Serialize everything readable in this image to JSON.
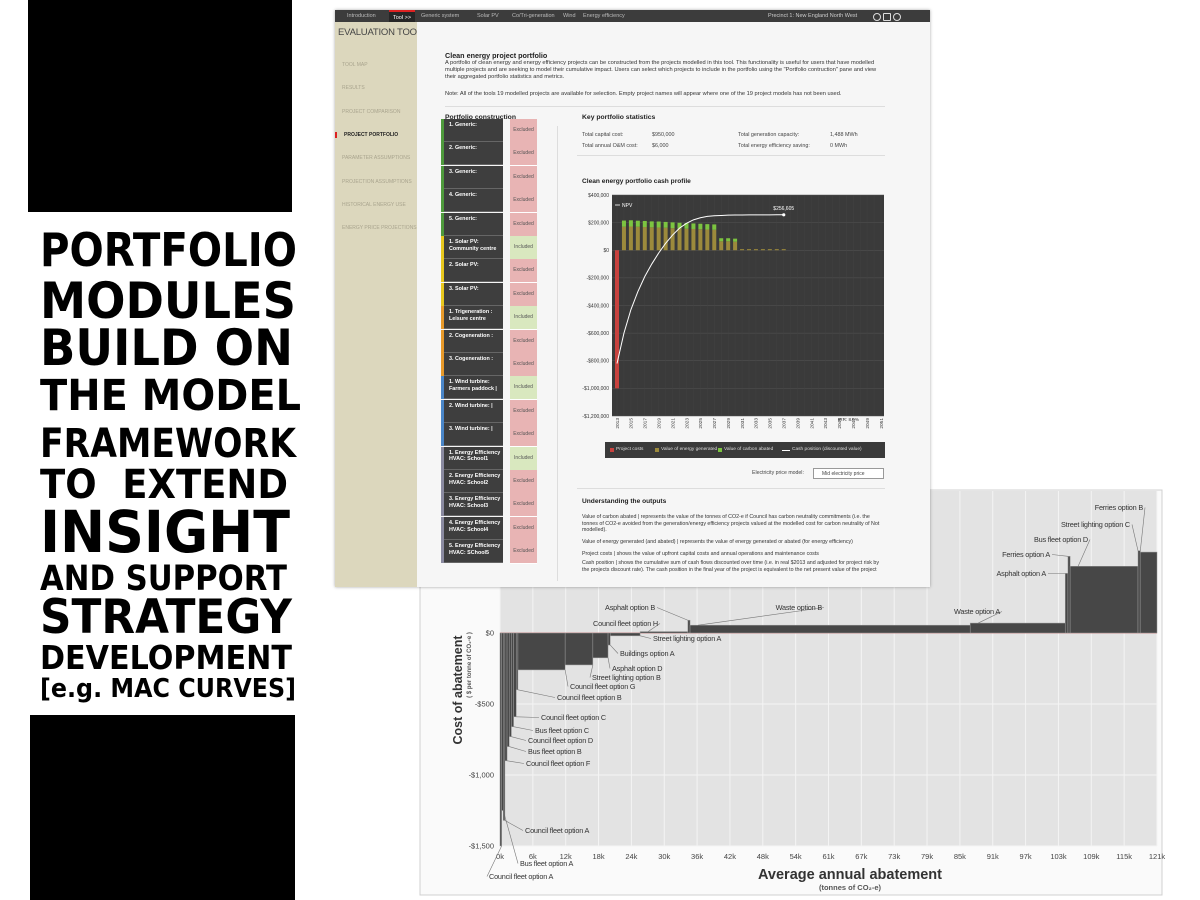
{
  "headline": [
    "PORTFOLIO",
    "MODULES",
    "BUILD ON",
    "THE MODEL",
    "FRAMEWORK",
    "TO  EXTEND",
    "INSIGHT",
    "AND SUPPORT",
    "STRATEGY",
    "DEVELOPMENT",
    "[e.g. MAC CURVES]"
  ],
  "tool": {
    "nav": [
      "Introduction",
      "Tool >>",
      "Generic system",
      "Solar PV",
      "Co/Tri-generation",
      "Wind",
      "Energy efficiency"
    ],
    "nav_active": 1,
    "precinct": "Precinct 1: New England North West",
    "sidebar_title": "EVALUATION TOOL",
    "sidebar": [
      "TOOL MAP",
      "RESULTS",
      "PROJECT COMPARISON",
      "PROJECT PORTFOLIO",
      "PARAMETER ASSUMPTIONS",
      "PROJECTION ASSUMPTIONS",
      "HISTORICAL ENERGY USE",
      "ENERGY PRICE PROJECTIONS"
    ],
    "sidebar_active": 3,
    "heading": "Clean energy project portfolio",
    "intro": "A portfolio of clean energy and energy efficiency projects can be constructed from the projects modelled in this tool. This functionality is useful for users that have modelled multiple projects and are seeking to model their cumulative impact. Users can select which projects to include in the portfolio using the \"Portfolio contruction\" pane and view their aggregated portfolio statistics and metrics.",
    "note": "Note: All of the tools 19 modelled projects are available for selection. Empty project names will appear where one of the 19 project models has not been used.",
    "construction_title": "Portfolio construction",
    "projects": [
      {
        "name": "1. Generic:",
        "status": "Excluded",
        "color": "#4e9a3c"
      },
      {
        "name": "2. Generic:",
        "status": "Excluded",
        "color": "#4e9a3c"
      },
      {
        "name": "3. Generic:",
        "status": "Excluded",
        "color": "#4e9a3c"
      },
      {
        "name": "4. Generic:",
        "status": "Excluded",
        "color": "#4e9a3c"
      },
      {
        "name": "5. Generic:",
        "status": "Excluded",
        "color": "#4e9a3c"
      },
      {
        "name": "1. Solar PV: Community centre",
        "status": "Included",
        "color": "#e8c81e"
      },
      {
        "name": "2. Solar PV:",
        "status": "Excluded",
        "color": "#e8c81e"
      },
      {
        "name": "3. Solar PV:",
        "status": "Excluded",
        "color": "#e8c81e"
      },
      {
        "name": "1. Trigeneration : Leisure centre",
        "status": "Included",
        "color": "#e89a2a"
      },
      {
        "name": "2. Cogeneration :",
        "status": "Excluded",
        "color": "#e89a2a"
      },
      {
        "name": "3. Cogeneration :",
        "status": "Excluded",
        "color": "#e89a2a"
      },
      {
        "name": "1. Wind turbine: Farmers paddock |",
        "status": "Included",
        "color": "#4a86c8"
      },
      {
        "name": "2. Wind turbine: |",
        "status": "Excluded",
        "color": "#4a86c8"
      },
      {
        "name": "3. Wind turbine: |",
        "status": "Excluded",
        "color": "#4a86c8"
      },
      {
        "name": "1. Energy Efficiency HVAC: School1",
        "status": "Included",
        "color": "#8a8aa0"
      },
      {
        "name": "2. Energy Efficiency HVAC: School2",
        "status": "Excluded",
        "color": "#8a8aa0"
      },
      {
        "name": "3. Energy Efficiency HVAC: School3",
        "status": "Excluded",
        "color": "#8a8aa0"
      },
      {
        "name": "4. Energy Efficiency HVAC: School4",
        "status": "Excluded",
        "color": "#8a8aa0"
      },
      {
        "name": "5. Energy Efficiency HVAC: SChool5",
        "status": "Excluded",
        "color": "#8a8aa0"
      }
    ],
    "stats_title": "Key portfolio statistics",
    "stats": [
      {
        "label": "Total capital cost:",
        "value": "$950,000"
      },
      {
        "label": "Total annual O&M cost:",
        "value": "$6,000"
      },
      {
        "label": "Total generation capacity:",
        "value": "1,488 MWh"
      },
      {
        "label": "Total energy efficiency saving:",
        "value": "0 MWh"
      }
    ],
    "cash_chart": {
      "type": "bar",
      "title": "Clean energy portfolio cash profile",
      "categories": [
        2013,
        null,
        2015,
        null,
        2017,
        null,
        2019,
        null,
        2021,
        null,
        2023,
        null,
        2025,
        null,
        2027,
        null,
        2029,
        null,
        2031,
        null,
        2033,
        null,
        2035,
        null,
        2037,
        null,
        2039,
        null,
        2041,
        null,
        2043,
        null,
        2045,
        null,
        2047,
        null,
        2049,
        null,
        2051
      ],
      "series": [
        {
          "name": "Project costs",
          "color": "#c8423e",
          "values": [
            -1000000,
            null,
            null,
            null,
            null,
            null,
            null,
            null,
            null,
            null,
            null,
            null,
            null,
            null,
            null,
            null,
            null,
            null,
            null,
            null,
            null,
            null,
            null,
            null,
            null,
            null,
            null,
            null,
            null,
            null,
            null,
            null,
            null,
            null,
            null,
            null,
            null,
            null,
            null
          ]
        },
        {
          "name": "Value of energy generated",
          "color": "#9c8a3c",
          "values": [
            null,
            170000,
            172000,
            170000,
            168000,
            166000,
            165000,
            163000,
            160000,
            158000,
            156000,
            154000,
            152000,
            150000,
            148000,
            65000,
            65000,
            62000,
            8000,
            8000,
            8000,
            8000,
            8000,
            8000,
            8000,
            null,
            null,
            null,
            null,
            null,
            null,
            null,
            null,
            null,
            null,
            null,
            null,
            null,
            null
          ]
        },
        {
          "name": "Value of carbon abated",
          "color": "#7cc440",
          "values": [
            null,
            45000,
            45000,
            44000,
            44000,
            43000,
            43000,
            42000,
            42000,
            41000,
            41000,
            40000,
            40000,
            39000,
            39000,
            22000,
            22000,
            22000,
            null,
            null,
            null,
            null,
            null,
            null,
            null,
            null,
            null,
            null,
            null,
            null,
            null,
            null,
            null,
            null,
            null,
            null,
            null,
            null,
            null
          ]
        },
        {
          "name": "Cash position (discounted value)",
          "color": "#ffffff",
          "type": "line",
          "values": [
            -820000,
            -600000,
            -430000,
            -300000,
            -190000,
            -100000,
            -20000,
            50000,
            110000,
            160000,
            195000,
            220000,
            235000,
            245000,
            250000,
            252000,
            254000,
            255000,
            255500,
            256000,
            256200,
            256400,
            256500,
            256600,
            256605,
            null,
            null,
            null,
            null,
            null,
            null,
            null,
            null,
            null,
            null,
            null,
            null,
            null,
            null
          ],
          "value_labels": [
            null,
            null,
            null,
            null,
            null,
            null,
            null,
            null,
            null,
            null,
            null,
            null,
            null,
            null,
            null,
            null,
            null,
            null,
            null,
            null,
            null,
            null,
            null,
            null,
            "$256,605",
            null,
            null,
            null,
            null,
            null,
            null,
            null,
            null,
            null,
            null,
            null,
            null,
            null,
            null
          ]
        }
      ],
      "ylim": [
        -1200000,
        400000
      ],
      "yticks": [
        {
          "value": 400000,
          "label": "$400,000"
        },
        {
          "value": 200000,
          "label": "$200,000"
        },
        {
          "value": 0,
          "label": "$0"
        },
        {
          "value": -200000,
          "label": "-$200,000"
        },
        {
          "value": -400000,
          "label": "-$400,000"
        },
        {
          "value": -600000,
          "label": "-$600,000"
        },
        {
          "value": -800000,
          "label": "-$800,000"
        },
        {
          "value": -1000000,
          "label": "-$1,000,000"
        },
        {
          "value": -1200000,
          "label": "-$1,200,000"
        }
      ],
      "grid": true,
      "npv_label": "NPV",
      "irr_label": "IRR: 8.6%"
    },
    "price_model_label": "Electricity price model:",
    "price_model": "Mid electricity price",
    "outputs_title": "Understanding the outputs",
    "outputs": [
      "Value of carbon abated | represents the value of the tonnes of CO2-e if Council has carbon neutrality commitments (i.e. the tonnes of CO2-e avoided from the generation/energy efficiency projects valued at the modelled cost for carbon neutrality of Not modelled).",
      "Value of energy generated (and abated) | represents the value of energy generated or abated (for energy efficiency)",
      "Project costs | shows the value of upfront capital costs and annual operations and maintenance costs",
      "Cash position | shows the cumulative  sum of cash flows discounted over time (i.e. in real $2013 and adjusted for project risk by the projects discount rate). The cash position in the final year of the project is equivalent to the net present value of the project"
    ]
  },
  "mac": {
    "type": "bar",
    "ylabel": "Cost of abatement",
    "ylabel_sub": "( $ per tonne of CO₂-e )",
    "xlabel": "Average annual abatement",
    "xlabel_sub": "(tonnes of CO₂-e)",
    "color": "#474747",
    "xlim": [
      0,
      121000
    ],
    "ylim": [
      -1500,
      1000
    ],
    "xticks": [
      {
        "value": 0,
        "label": "0k"
      },
      {
        "value": 6050,
        "label": "6k"
      },
      {
        "value": 12100,
        "label": "12k"
      },
      {
        "value": 18150,
        "label": "18k"
      },
      {
        "value": 24200,
        "label": "24k"
      },
      {
        "value": 30250,
        "label": "30k"
      },
      {
        "value": 36300,
        "label": "36k"
      },
      {
        "value": 42350,
        "label": "42k"
      },
      {
        "value": 48400,
        "label": "48k"
      },
      {
        "value": 54450,
        "label": "54k"
      },
      {
        "value": 60500,
        "label": "61k"
      },
      {
        "value": 66550,
        "label": "67k"
      },
      {
        "value": 72600,
        "label": "73k"
      },
      {
        "value": 78650,
        "label": "79k"
      },
      {
        "value": 84700,
        "label": "85k"
      },
      {
        "value": 90750,
        "label": "91k"
      },
      {
        "value": 96800,
        "label": "97k"
      },
      {
        "value": 102850,
        "label": "103k"
      },
      {
        "value": 108900,
        "label": "109k"
      },
      {
        "value": 114950,
        "label": "115k"
      },
      {
        "value": 121000,
        "label": "121k"
      }
    ],
    "yticks": [
      {
        "value": 0,
        "label": "$0"
      },
      {
        "value": -500,
        "label": "-$500"
      },
      {
        "value": -1000,
        "label": "-$1,000"
      },
      {
        "value": -1500,
        "label": "-$1,500"
      }
    ],
    "bars": [
      {
        "label": "Council fleet option A",
        "x0": 0,
        "x1": 300,
        "value": -1500
      },
      {
        "label": "Bus fleet option A",
        "x0": 300,
        "x1": 600,
        "value": -1250
      },
      {
        "label": "Council fleet option A",
        "x0": 600,
        "x1": 900,
        "value": -1320
      },
      {
        "label": "Council fleet option F",
        "x0": 900,
        "x1": 1300,
        "value": -900
      },
      {
        "label": "Bus fleet option B",
        "x0": 1300,
        "x1": 1700,
        "value": -800
      },
      {
        "label": "Council fleet option D",
        "x0": 1700,
        "x1": 2100,
        "value": -730
      },
      {
        "label": "Bus fleet option C",
        "x0": 2100,
        "x1": 2500,
        "value": -660
      },
      {
        "label": "Council fleet option C",
        "x0": 2500,
        "x1": 3000,
        "value": -590
      },
      {
        "label": "Council fleet option B",
        "x0": 3000,
        "x1": 3300,
        "value": -400
      },
      {
        "label": "Council fleet option G",
        "x0": 3300,
        "x1": 12000,
        "value": -260
      },
      {
        "label": "Street lighting option B",
        "x0": 12000,
        "x1": 17100,
        "value": -225
      },
      {
        "label": "Asphalt option D",
        "x0": 17100,
        "x1": 19900,
        "value": -175
      },
      {
        "label": "Buildings option A",
        "x0": 19900,
        "x1": 20300,
        "value": -85
      },
      {
        "label": "Street lighting option A",
        "x0": 20300,
        "x1": 25800,
        "value": -20
      },
      {
        "label": "Council fleet option H",
        "x0": 25800,
        "x1": 34600,
        "value": 10
      },
      {
        "label": "Asphalt option B",
        "x0": 34600,
        "x1": 35000,
        "value": 90
      },
      {
        "label": "Waste option B",
        "x0": 35000,
        "x1": 86600,
        "value": 55
      },
      {
        "label": "Waste option A",
        "x0": 86600,
        "x1": 104100,
        "value": 70
      },
      {
        "label": "Asphalt option A",
        "x0": 104100,
        "x1": 104600,
        "value": 420
      },
      {
        "label": "Ferries option A",
        "x0": 104600,
        "x1": 105000,
        "value": 540
      },
      {
        "label": "Bus fleet option D",
        "x0": 105000,
        "x1": 117500,
        "value": 470
      },
      {
        "label": "Street lighting option C",
        "x0": 117500,
        "x1": 117900,
        "value": 580
      },
      {
        "label": "Ferries option B",
        "x0": 117900,
        "x1": 121000,
        "value": 570
      }
    ]
  }
}
